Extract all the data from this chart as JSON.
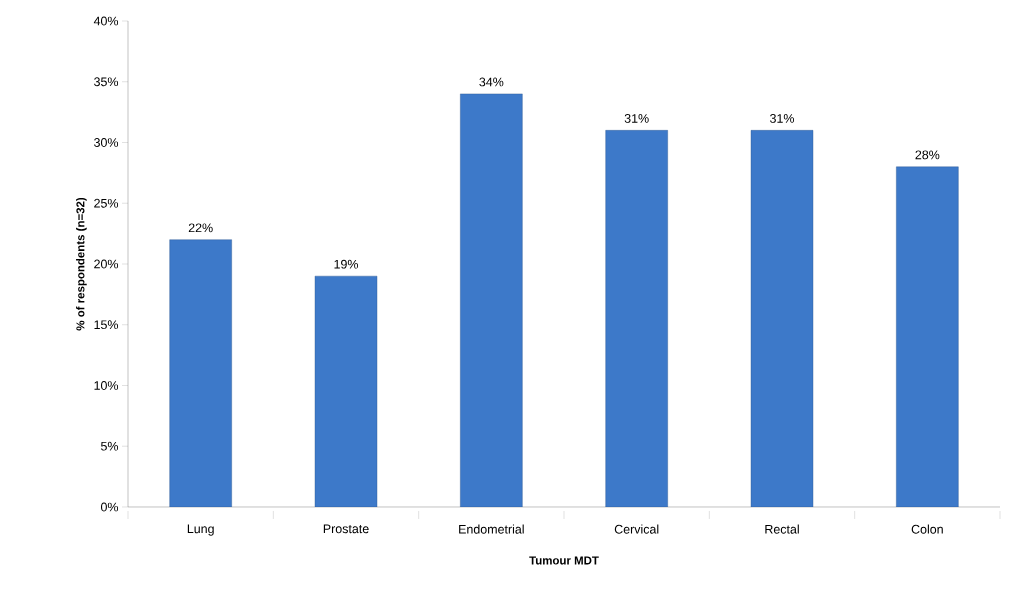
{
  "chart_data": {
    "type": "bar",
    "xlabel": "Tumour MDT",
    "ylabel": "% of respondents (n=32)",
    "categories": [
      "Lung",
      "Prostate",
      "Endometrial",
      "Cervical",
      "Rectal",
      "Colon"
    ],
    "values": [
      22,
      19,
      34,
      31,
      31,
      28
    ],
    "value_labels": [
      "22%",
      "19%",
      "34%",
      "31%",
      "31%",
      "28%"
    ],
    "color": "#3d79c9",
    "ylim": [
      0,
      40
    ],
    "yticks": [
      {
        "value": 0,
        "label": "0%"
      },
      {
        "value": 5,
        "label": "5%"
      },
      {
        "value": 10,
        "label": "10%"
      },
      {
        "value": 15,
        "label": "15%"
      },
      {
        "value": 20,
        "label": "20%"
      },
      {
        "value": 25,
        "label": "25%"
      },
      {
        "value": 30,
        "label": "30%"
      },
      {
        "value": 35,
        "label": "35%"
      },
      {
        "value": 40,
        "label": "40%"
      }
    ],
    "grid": false
  }
}
